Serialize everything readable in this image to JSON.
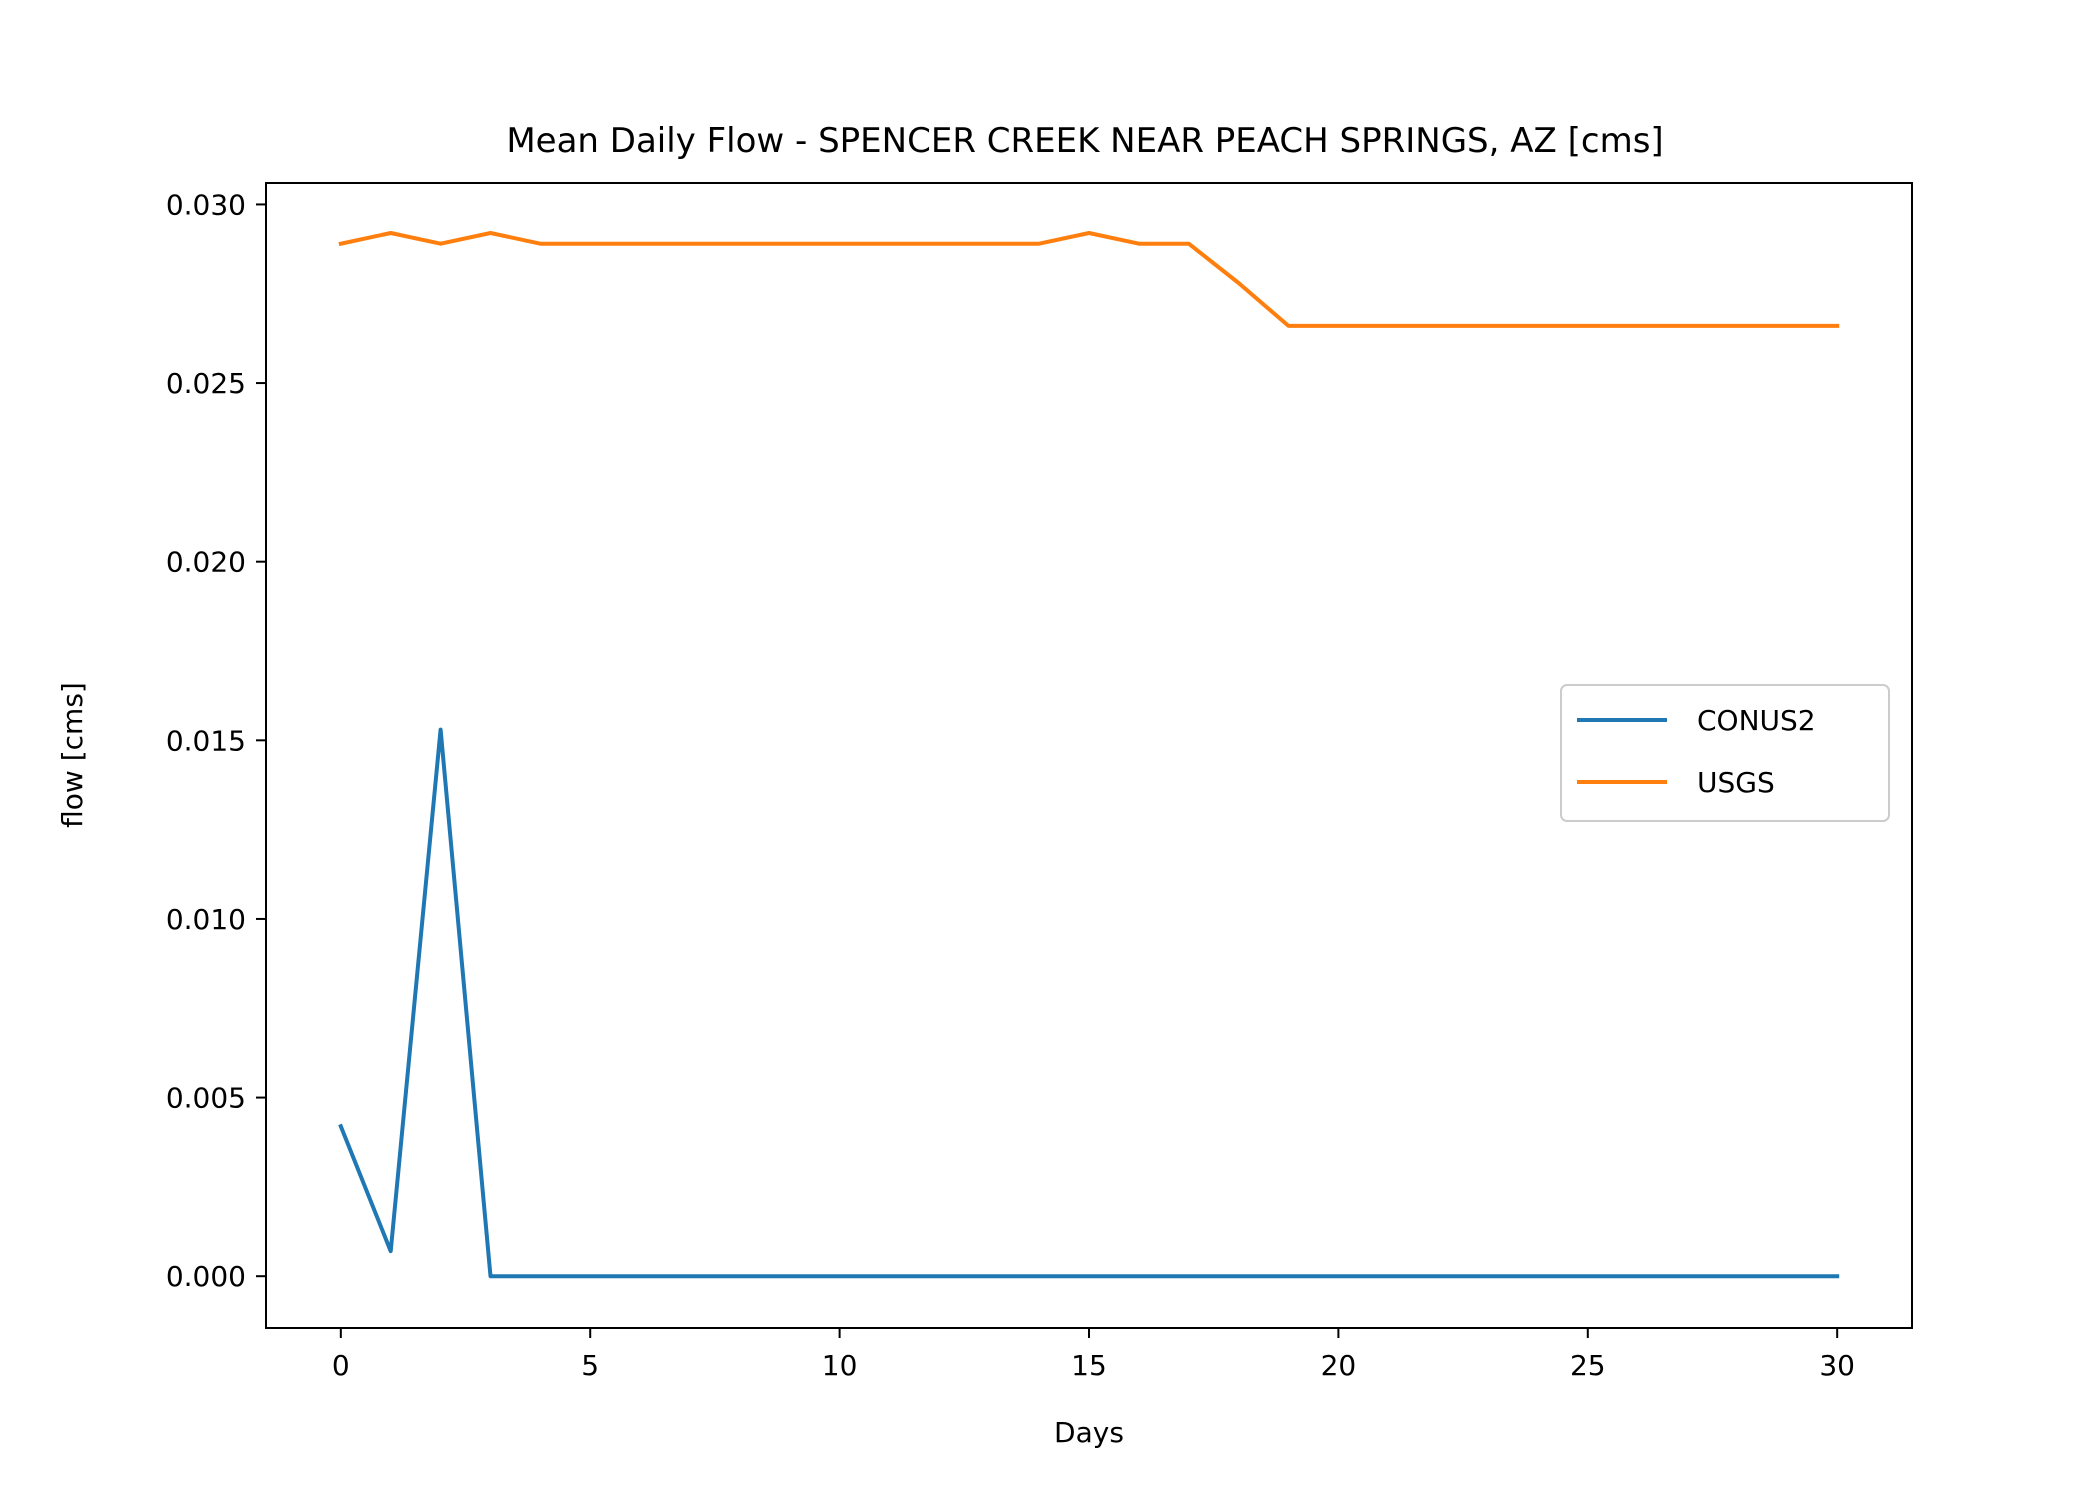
{
  "chart_data": {
    "type": "line",
    "title": "Mean Daily Flow - SPENCER CREEK NEAR PEACH SPRINGS, AZ [cms]",
    "xlabel": "Days",
    "ylabel": "flow [cms]",
    "xlim": [
      -1.5,
      31.5
    ],
    "ylim": [
      -0.00145,
      0.0306
    ],
    "xticks": [
      0,
      5,
      10,
      15,
      20,
      25,
      30
    ],
    "xtick_labels": [
      "0",
      "5",
      "10",
      "15",
      "20",
      "25",
      "30"
    ],
    "yticks": [
      0.0,
      0.005,
      0.01,
      0.015,
      0.02,
      0.025,
      0.03
    ],
    "ytick_labels": [
      "0.000",
      "0.005",
      "0.010",
      "0.015",
      "0.020",
      "0.025",
      "0.030"
    ],
    "grid": false,
    "legend_position": "center-right",
    "x": [
      0,
      1,
      2,
      3,
      4,
      5,
      6,
      7,
      8,
      9,
      10,
      11,
      12,
      13,
      14,
      15,
      16,
      17,
      18,
      19,
      20,
      21,
      22,
      23,
      24,
      25,
      26,
      27,
      28,
      29,
      30
    ],
    "series": [
      {
        "name": "CONUS2",
        "color": "#1f77b4",
        "values": [
          0.0042,
          0.0007,
          0.0153,
          0.0,
          0.0,
          0.0,
          0.0,
          0.0,
          0.0,
          0.0,
          0.0,
          0.0,
          0.0,
          0.0,
          0.0,
          0.0,
          0.0,
          0.0,
          0.0,
          0.0,
          0.0,
          0.0,
          0.0,
          0.0,
          0.0,
          0.0,
          0.0,
          0.0,
          0.0,
          0.0,
          0.0
        ]
      },
      {
        "name": "USGS",
        "color": "#ff7f0e",
        "values": [
          0.0289,
          0.0292,
          0.0289,
          0.0292,
          0.0289,
          0.0289,
          0.0289,
          0.0289,
          0.0289,
          0.0289,
          0.0289,
          0.0289,
          0.0289,
          0.0289,
          0.0289,
          0.0292,
          0.0289,
          0.0289,
          0.0278,
          0.0266,
          0.0266,
          0.0266,
          0.0266,
          0.0266,
          0.0266,
          0.0266,
          0.0266,
          0.0266,
          0.0266,
          0.0266,
          0.0266
        ]
      }
    ]
  }
}
